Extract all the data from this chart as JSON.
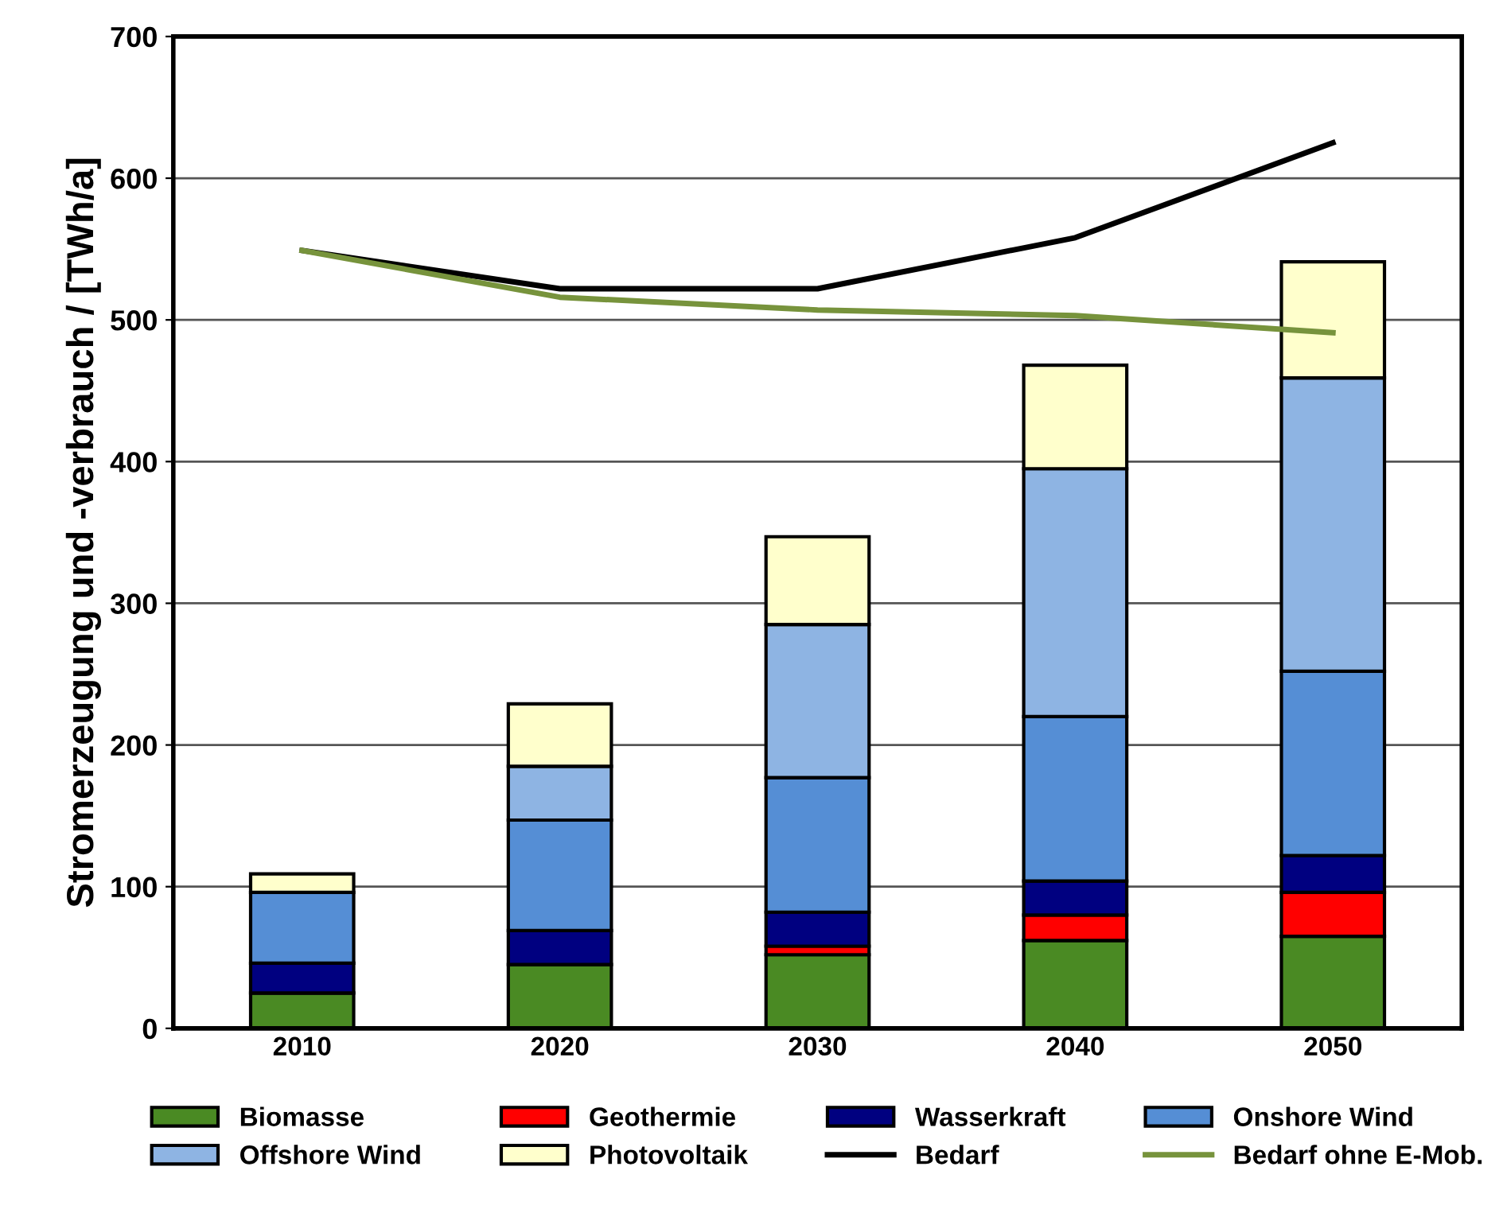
{
  "chart_data": {
    "type": "bar",
    "stacked": true,
    "ylabel": "Stromerzeugung und -verbrauch / [TWh/a]",
    "categories": [
      "2010",
      "2020",
      "2030",
      "2040",
      "2050"
    ],
    "ylim": [
      0,
      700
    ],
    "yticks": [
      0,
      100,
      200,
      300,
      400,
      500,
      600,
      700
    ],
    "grid": "y",
    "legend": "bottom",
    "series": [
      {
        "name": "Biomasse",
        "color": "#4a8a23",
        "values": [
          25,
          45,
          52,
          62,
          65
        ]
      },
      {
        "name": "Geothermie",
        "color": "#ff0000",
        "values": [
          0,
          0,
          6,
          18,
          31
        ]
      },
      {
        "name": "Wasserkraft",
        "color": "#000080",
        "values": [
          21,
          24,
          24,
          24,
          26
        ]
      },
      {
        "name": "Onshore Wind",
        "color": "#558ed5",
        "values": [
          50,
          78,
          95,
          116,
          130
        ]
      },
      {
        "name": "Offshore Wind",
        "color": "#8eb4e3",
        "values": [
          0,
          38,
          108,
          175,
          207
        ]
      },
      {
        "name": "Photovoltaik",
        "color": "#ffffcc",
        "values": [
          13,
          44,
          62,
          73,
          82
        ]
      },
      {
        "name": "Bedarf",
        "type": "line",
        "color": "#000000",
        "values": [
          549,
          522,
          522,
          558,
          625
        ]
      },
      {
        "name": "Bedarf ohne E-Mob.",
        "type": "line",
        "color": "#77933c",
        "values": [
          549,
          516,
          507,
          503,
          491
        ]
      }
    ]
  }
}
